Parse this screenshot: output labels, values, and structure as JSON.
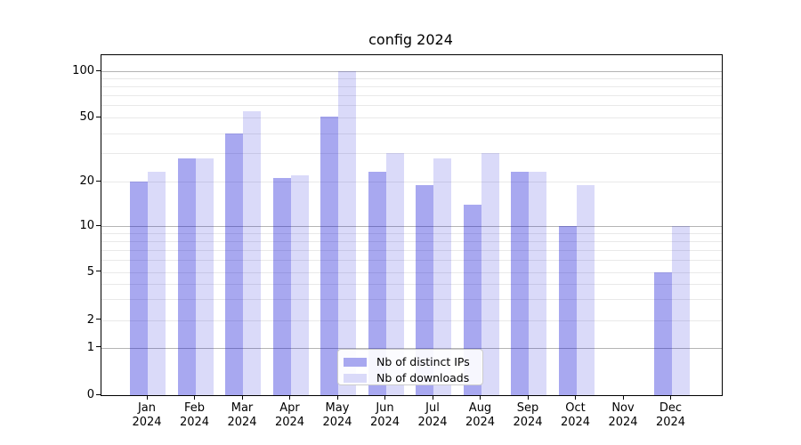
{
  "title": "config 2024",
  "chart_data": {
    "type": "bar",
    "title": "config 2024",
    "categories": [
      "Jan 2024",
      "Feb 2024",
      "Mar 2024",
      "Apr 2024",
      "May 2024",
      "Jun 2024",
      "Jul 2024",
      "Aug 2024",
      "Sep 2024",
      "Oct 2024",
      "Nov 2024",
      "Dec 2024"
    ],
    "series": [
      {
        "name": "Nb of distinct IPs",
        "color": "rgba(7,7,213,0.35)",
        "legend_color": "#a8a8f0",
        "values": [
          20,
          28,
          40,
          21,
          51,
          23,
          19,
          14,
          23,
          10,
          0,
          5
        ]
      },
      {
        "name": "Nb of downloads",
        "color": "rgba(7,7,213,0.15)",
        "legend_color": "#dadaf9",
        "values": [
          23,
          28,
          55,
          22,
          100,
          30,
          28,
          30,
          23,
          19,
          0,
          10
        ]
      }
    ],
    "yscale": "symlog",
    "yticks": [
      0,
      1,
      2,
      5,
      10,
      20,
      50,
      100
    ],
    "ytick_major_gridlines": [
      1,
      10,
      100
    ],
    "ytick_minor_gridlines": [
      2,
      3,
      4,
      5,
      6,
      7,
      8,
      9,
      20,
      30,
      40,
      50,
      60,
      70,
      80,
      90
    ],
    "ylim": [
      0,
      127
    ],
    "grid": true,
    "grid_major_color": "#b4b4b4",
    "grid_minor_color": "#e9e9e9",
    "legend_position": "lower center"
  }
}
